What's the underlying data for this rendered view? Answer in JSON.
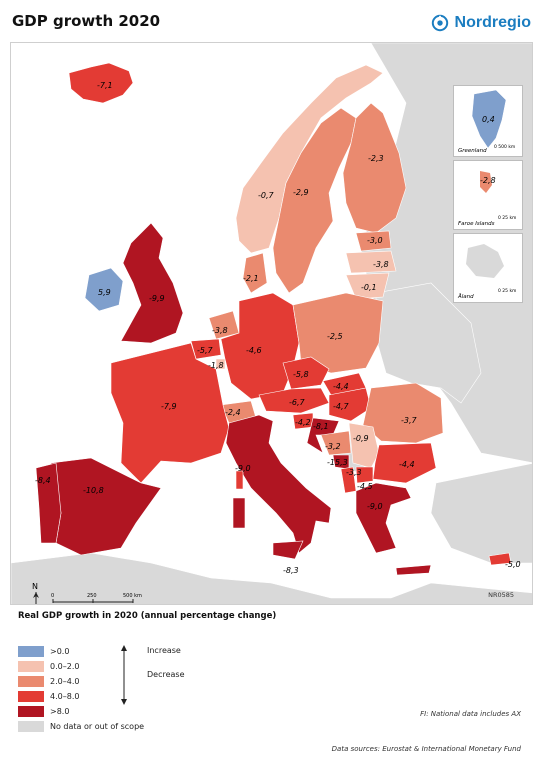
{
  "title": "GDP growth 2020",
  "logo_text": "Nordregio",
  "colors": {
    "increase": "#7f9fcc",
    "band_0_2": "#f5c2b0",
    "band_2_4": "#ea8a6f",
    "band_4_8": "#e33b34",
    "band_8": "#b01522",
    "no_data": "#d9d9d9",
    "sea": "#ffffff"
  },
  "regions": {
    "iceland": "-7,1",
    "ireland": "5,9",
    "uk": "-9,9",
    "norway": "-0,7",
    "sweden": "-2,9",
    "finland": "-2,3",
    "estonia": "-3,0",
    "latvia": "-3,8",
    "lithuania": "-0,1",
    "denmark": "-2,1",
    "netherlands": "-3,8",
    "belgium": "-5,7",
    "luxembourg": "-1,8",
    "germany": "-4,6",
    "poland": "-2,5",
    "czechia": "-5,8",
    "slovakia": "-4,4",
    "austria": "-6,7",
    "hungary": "-4,7",
    "switzerland": "-2,4",
    "slovenia": "-4,2",
    "croatia": "-8,1",
    "romania": "-3,7",
    "serbia": "-0,9",
    "bosnia": "-3,2",
    "montenegro": "-15,3",
    "albania": "-3,3",
    "north_macedonia": "-4,5",
    "bulgaria": "-4,4",
    "greece": "-9,0",
    "france": "-7,9",
    "spain": "-10,8",
    "portugal": "-8,4",
    "italy": "-9,0",
    "malta": "-8,3",
    "cyprus": "-5,0"
  },
  "insets": {
    "greenland": {
      "name": "Greenland",
      "value": "0,4",
      "scale": "0  500 km"
    },
    "faroe": {
      "name": "Faroe Islands",
      "value": "-2,8",
      "scale": "0  25 km"
    },
    "aland": {
      "name": "Åland",
      "scale": "0  25 km"
    }
  },
  "scale_bar": {
    "labels": [
      "0",
      "250",
      "500 km"
    ]
  },
  "north_label": "N",
  "ref_code": "NR0585",
  "legend": {
    "title": "Real GDP growth in 2020 (annual percentage change)",
    "items": [
      {
        "label": ">0.0",
        "color_key": "increase"
      },
      {
        "label": "0.0–2.0",
        "color_key": "band_0_2"
      },
      {
        "label": "2.0–4.0",
        "color_key": "band_2_4"
      },
      {
        "label": "4.0–8.0",
        "color_key": "band_4_8"
      },
      {
        "label": ">8.0",
        "color_key": "band_8"
      },
      {
        "label": "No data or out of scope",
        "color_key": "no_data"
      }
    ],
    "increase": "Increase",
    "decrease": "Decrease"
  },
  "note": "FI: National data includes AX",
  "sources": "Data sources: Eurostat & International Monetary Fund"
}
